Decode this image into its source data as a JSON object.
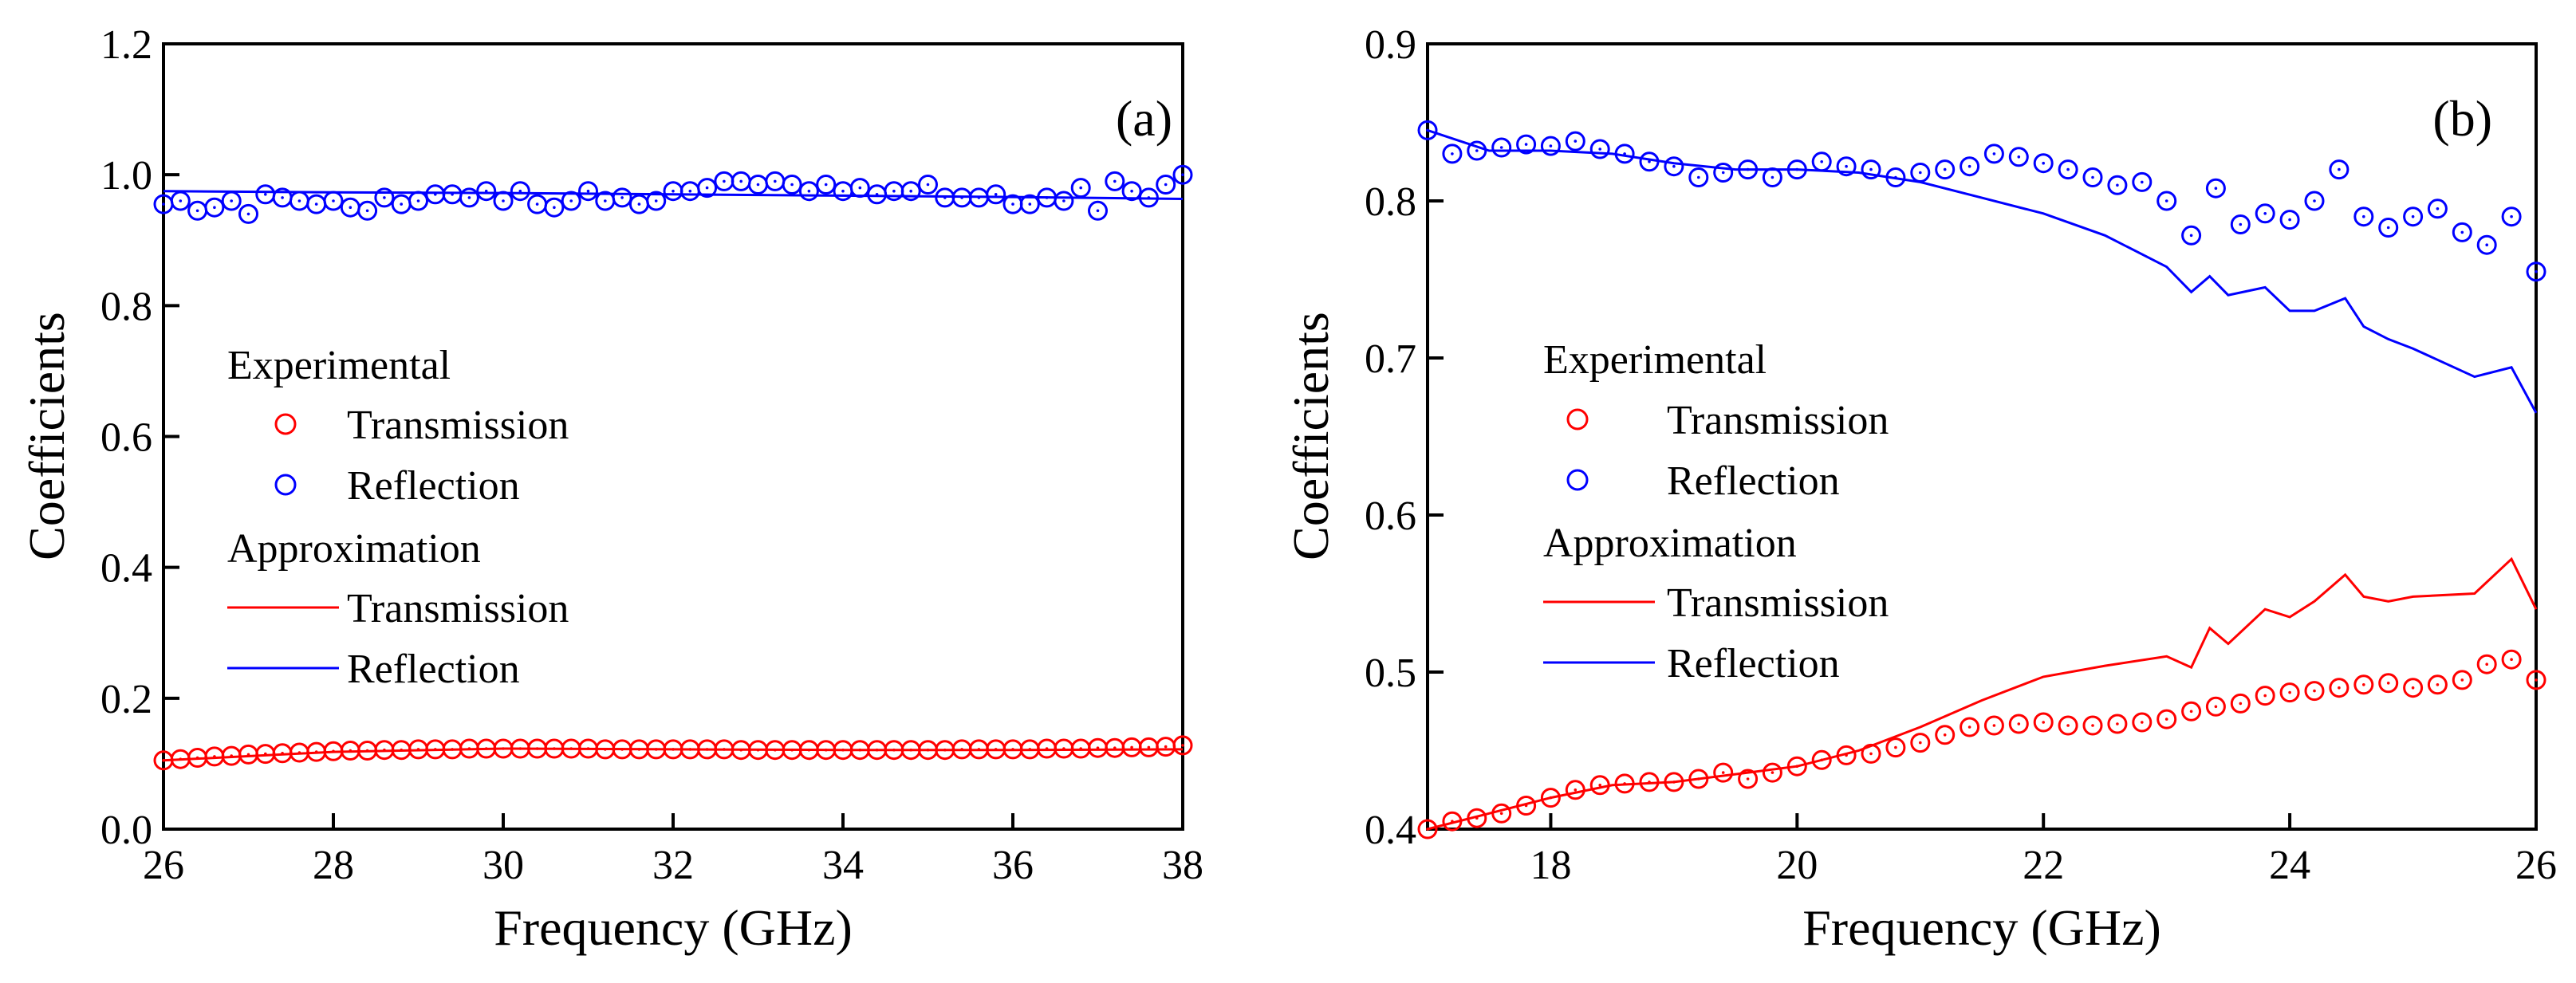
{
  "chart_data": [
    {
      "panel_label": "(a)",
      "type": "scatter+line",
      "xlabel": "Frequency (GHz)",
      "ylabel": "Coefficients",
      "xlim": [
        26,
        38
      ],
      "ylim": [
        0.0,
        1.2
      ],
      "xticks": [
        26,
        28,
        30,
        32,
        34,
        36,
        38
      ],
      "yticks": [
        0.0,
        0.2,
        0.4,
        0.6,
        0.8,
        1.0,
        1.2
      ],
      "xtick_labels": [
        "26",
        "28",
        "30",
        "32",
        "34",
        "36",
        "38"
      ],
      "ytick_labels": [
        "0.0",
        "0.2",
        "0.4",
        "0.6",
        "0.8",
        "1.0",
        "1.2"
      ],
      "legend": {
        "position": "center-left",
        "group_experimental": "Experimental",
        "group_approximation": "Approximation",
        "entries": [
          "Transmission",
          "Reflection",
          "Transmission",
          "Reflection"
        ]
      },
      "series": [
        {
          "name": "Experimental Transmission",
          "style": "circle-markers",
          "color": "#ff0000",
          "x": [
            26.0,
            26.2,
            26.4,
            26.6,
            26.8,
            27.0,
            27.2,
            27.4,
            27.6,
            27.8,
            28.0,
            28.2,
            28.4,
            28.6,
            28.8,
            29.0,
            29.2,
            29.4,
            29.6,
            29.8,
            30.0,
            30.2,
            30.4,
            30.6,
            30.8,
            31.0,
            31.2,
            31.4,
            31.6,
            31.8,
            32.0,
            32.2,
            32.4,
            32.6,
            32.8,
            33.0,
            33.2,
            33.4,
            33.6,
            33.8,
            34.0,
            34.2,
            34.4,
            34.6,
            34.8,
            35.0,
            35.2,
            35.4,
            35.6,
            35.8,
            36.0,
            36.2,
            36.4,
            36.6,
            36.8,
            37.0,
            37.2,
            37.4,
            37.6,
            37.8,
            38.0
          ],
          "y": [
            0.105,
            0.107,
            0.109,
            0.111,
            0.112,
            0.114,
            0.115,
            0.116,
            0.117,
            0.118,
            0.119,
            0.12,
            0.12,
            0.121,
            0.121,
            0.122,
            0.122,
            0.122,
            0.123,
            0.123,
            0.123,
            0.123,
            0.123,
            0.123,
            0.123,
            0.123,
            0.122,
            0.122,
            0.122,
            0.122,
            0.122,
            0.122,
            0.122,
            0.122,
            0.121,
            0.121,
            0.121,
            0.121,
            0.121,
            0.121,
            0.121,
            0.121,
            0.121,
            0.121,
            0.121,
            0.121,
            0.121,
            0.122,
            0.122,
            0.122,
            0.122,
            0.122,
            0.123,
            0.123,
            0.123,
            0.124,
            0.124,
            0.125,
            0.125,
            0.126,
            0.128
          ]
        },
        {
          "name": "Experimental Reflection",
          "style": "circle-markers",
          "color": "#0000ff",
          "x": [
            26.0,
            26.2,
            26.4,
            26.6,
            26.8,
            27.0,
            27.2,
            27.4,
            27.6,
            27.8,
            28.0,
            28.2,
            28.4,
            28.6,
            28.8,
            29.0,
            29.2,
            29.4,
            29.6,
            29.8,
            30.0,
            30.2,
            30.4,
            30.6,
            30.8,
            31.0,
            31.2,
            31.4,
            31.6,
            31.8,
            32.0,
            32.2,
            32.4,
            32.6,
            32.8,
            33.0,
            33.2,
            33.4,
            33.6,
            33.8,
            34.0,
            34.2,
            34.4,
            34.6,
            34.8,
            35.0,
            35.2,
            35.4,
            35.6,
            35.8,
            36.0,
            36.2,
            36.4,
            36.6,
            36.8,
            37.0,
            37.2,
            37.4,
            37.6,
            37.8,
            38.0
          ],
          "y": [
            0.955,
            0.96,
            0.945,
            0.95,
            0.96,
            0.94,
            0.97,
            0.965,
            0.96,
            0.955,
            0.96,
            0.95,
            0.945,
            0.965,
            0.955,
            0.96,
            0.97,
            0.97,
            0.965,
            0.975,
            0.96,
            0.975,
            0.955,
            0.95,
            0.96,
            0.975,
            0.96,
            0.965,
            0.955,
            0.96,
            0.975,
            0.975,
            0.98,
            0.99,
            0.99,
            0.985,
            0.99,
            0.985,
            0.975,
            0.985,
            0.975,
            0.98,
            0.97,
            0.975,
            0.975,
            0.985,
            0.965,
            0.965,
            0.965,
            0.97,
            0.955,
            0.955,
            0.965,
            0.96,
            0.98,
            0.945,
            0.99,
            0.975,
            0.965,
            0.985,
            1.0
          ]
        },
        {
          "name": "Approximation Transmission",
          "style": "line",
          "color": "#ff0000",
          "x": [
            26,
            28,
            30,
            32,
            34,
            36,
            38
          ],
          "y": [
            0.105,
            0.118,
            0.123,
            0.122,
            0.121,
            0.121,
            0.122
          ]
        },
        {
          "name": "Approximation Reflection",
          "style": "line",
          "color": "#0000ff",
          "x": [
            26,
            28,
            30,
            32,
            34,
            36,
            38
          ],
          "y": [
            0.975,
            0.973,
            0.972,
            0.97,
            0.968,
            0.966,
            0.963
          ]
        }
      ]
    },
    {
      "panel_label": "(b)",
      "type": "scatter+line",
      "xlabel": "Frequency (GHz)",
      "ylabel": "Coefficients",
      "xlim": [
        17,
        26
      ],
      "ylim": [
        0.4,
        0.9
      ],
      "xticks": [
        18,
        20,
        22,
        24,
        26
      ],
      "yticks": [
        0.4,
        0.5,
        0.6,
        0.7,
        0.8,
        0.9
      ],
      "xtick_labels": [
        "18",
        "20",
        "22",
        "24",
        "26"
      ],
      "ytick_labels": [
        "0.4",
        "0.5",
        "0.6",
        "0.7",
        "0.8",
        "0.9"
      ],
      "legend": {
        "position": "center-left",
        "group_experimental": "Experimental",
        "group_approximation": "Approximation",
        "entries": [
          "Transmission",
          "Reflection",
          "Transmission",
          "Reflection"
        ]
      },
      "series": [
        {
          "name": "Experimental Transmission",
          "style": "circle-markers",
          "color": "#ff0000",
          "x": [
            17.0,
            17.2,
            17.4,
            17.6,
            17.8,
            18.0,
            18.2,
            18.4,
            18.6,
            18.8,
            19.0,
            19.2,
            19.4,
            19.6,
            19.8,
            20.0,
            20.2,
            20.4,
            20.6,
            20.8,
            21.0,
            21.2,
            21.4,
            21.6,
            21.8,
            22.0,
            22.2,
            22.4,
            22.6,
            22.8,
            23.0,
            23.2,
            23.4,
            23.6,
            23.8,
            24.0,
            24.2,
            24.4,
            24.6,
            24.8,
            25.0,
            25.2,
            25.4,
            25.6,
            25.8,
            26.0
          ],
          "y": [
            0.4,
            0.405,
            0.407,
            0.41,
            0.415,
            0.42,
            0.425,
            0.428,
            0.429,
            0.43,
            0.43,
            0.432,
            0.436,
            0.432,
            0.436,
            0.44,
            0.444,
            0.447,
            0.448,
            0.452,
            0.455,
            0.46,
            0.465,
            0.466,
            0.467,
            0.468,
            0.466,
            0.466,
            0.467,
            0.468,
            0.47,
            0.475,
            0.478,
            0.48,
            0.485,
            0.487,
            0.488,
            0.49,
            0.492,
            0.493,
            0.49,
            0.492,
            0.495,
            0.505,
            0.508,
            0.495
          ]
        },
        {
          "name": "Experimental Reflection",
          "style": "circle-markers",
          "color": "#0000ff",
          "x": [
            17.0,
            17.2,
            17.4,
            17.6,
            17.8,
            18.0,
            18.2,
            18.4,
            18.6,
            18.8,
            19.0,
            19.2,
            19.4,
            19.6,
            19.8,
            20.0,
            20.2,
            20.4,
            20.6,
            20.8,
            21.0,
            21.2,
            21.4,
            21.6,
            21.8,
            22.0,
            22.2,
            22.4,
            22.6,
            22.8,
            23.0,
            23.2,
            23.4,
            23.6,
            23.8,
            24.0,
            24.2,
            24.4,
            24.6,
            24.8,
            25.0,
            25.2,
            25.4,
            25.6,
            25.8,
            26.0
          ],
          "y": [
            0.845,
            0.83,
            0.832,
            0.834,
            0.836,
            0.835,
            0.838,
            0.833,
            0.83,
            0.825,
            0.822,
            0.815,
            0.818,
            0.82,
            0.815,
            0.82,
            0.825,
            0.822,
            0.82,
            0.815,
            0.818,
            0.82,
            0.822,
            0.83,
            0.828,
            0.824,
            0.82,
            0.815,
            0.81,
            0.812,
            0.8,
            0.778,
            0.808,
            0.785,
            0.792,
            0.788,
            0.8,
            0.82,
            0.79,
            0.783,
            0.79,
            0.795,
            0.78,
            0.772,
            0.79,
            0.755
          ]
        },
        {
          "name": "Approximation Transmission",
          "style": "line",
          "color": "#ff0000",
          "x": [
            17.0,
            17.5,
            18.0,
            18.5,
            19.0,
            19.5,
            20.0,
            20.5,
            21.0,
            21.5,
            22.0,
            22.5,
            23.0,
            23.2,
            23.35,
            23.5,
            23.8,
            24.0,
            24.2,
            24.45,
            24.6,
            24.8,
            25.0,
            25.5,
            25.8,
            26.0
          ],
          "y": [
            0.4,
            0.41,
            0.42,
            0.428,
            0.43,
            0.435,
            0.44,
            0.45,
            0.465,
            0.482,
            0.497,
            0.504,
            0.51,
            0.503,
            0.528,
            0.518,
            0.54,
            0.535,
            0.545,
            0.562,
            0.548,
            0.545,
            0.548,
            0.55,
            0.572,
            0.54
          ]
        },
        {
          "name": "Approximation Reflection",
          "style": "line",
          "color": "#0000ff",
          "x": [
            17.0,
            17.5,
            18.0,
            18.5,
            19.0,
            19.5,
            20.0,
            20.5,
            21.0,
            21.5,
            22.0,
            22.5,
            23.0,
            23.2,
            23.35,
            23.5,
            23.8,
            24.0,
            24.2,
            24.45,
            24.6,
            24.8,
            25.0,
            25.5,
            25.8,
            26.0
          ],
          "y": [
            0.845,
            0.832,
            0.832,
            0.83,
            0.824,
            0.82,
            0.82,
            0.818,
            0.812,
            0.802,
            0.792,
            0.778,
            0.758,
            0.742,
            0.752,
            0.74,
            0.745,
            0.73,
            0.73,
            0.738,
            0.72,
            0.712,
            0.706,
            0.688,
            0.694,
            0.665
          ]
        }
      ]
    }
  ]
}
